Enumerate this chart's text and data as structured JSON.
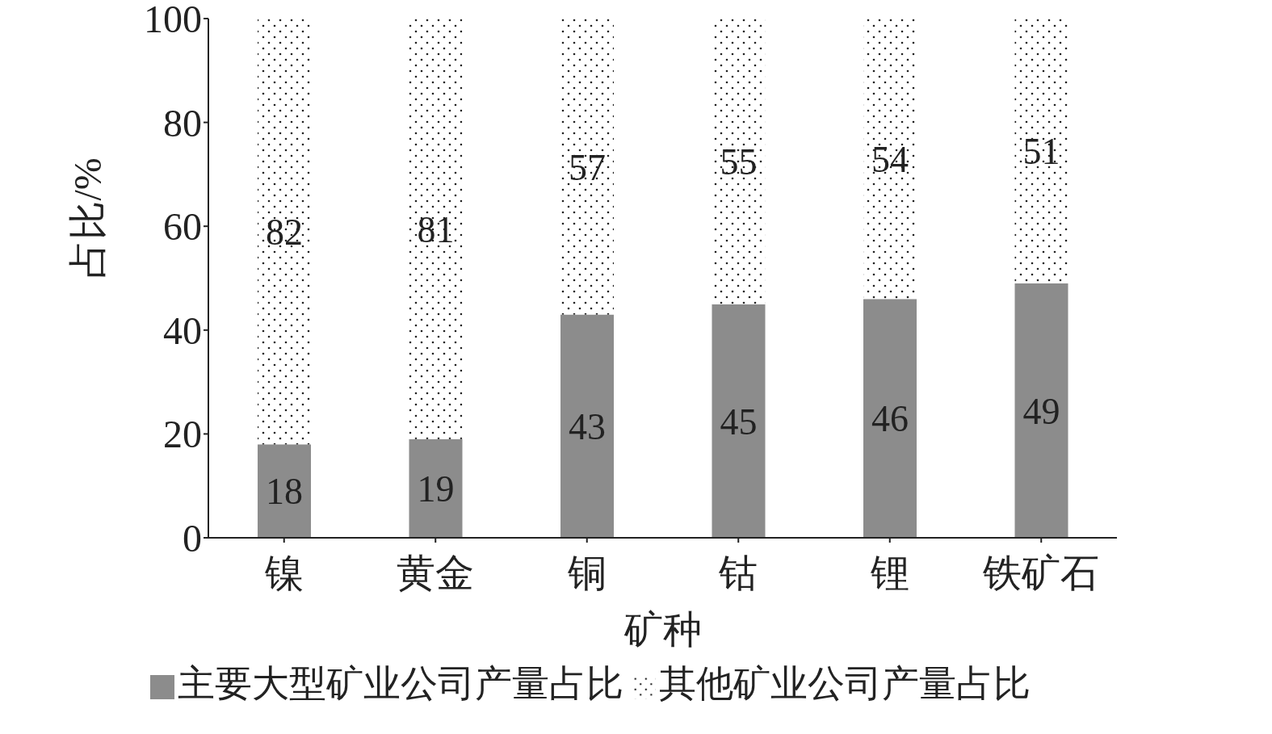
{
  "chart_data": {
    "type": "bar",
    "stacked": true,
    "xlabel": "矿种",
    "ylabel": "占比/%",
    "categories": [
      "镍",
      "黄金",
      "铜",
      "钴",
      "锂",
      "铁矿石"
    ],
    "series": [
      {
        "name": "主要大型矿业公司产量占比",
        "color": "#8c8c8c",
        "values": [
          18,
          19,
          43,
          45,
          46,
          49
        ]
      },
      {
        "name": "其他矿业公司产量占比",
        "color": "#ffffff",
        "values": [
          82,
          81,
          57,
          55,
          54,
          51
        ]
      }
    ],
    "ylim": [
      0,
      100
    ],
    "yticks": [
      0,
      20,
      40,
      60,
      80,
      100
    ],
    "grid": false,
    "legend": "bottom",
    "data_labels": true
  }
}
